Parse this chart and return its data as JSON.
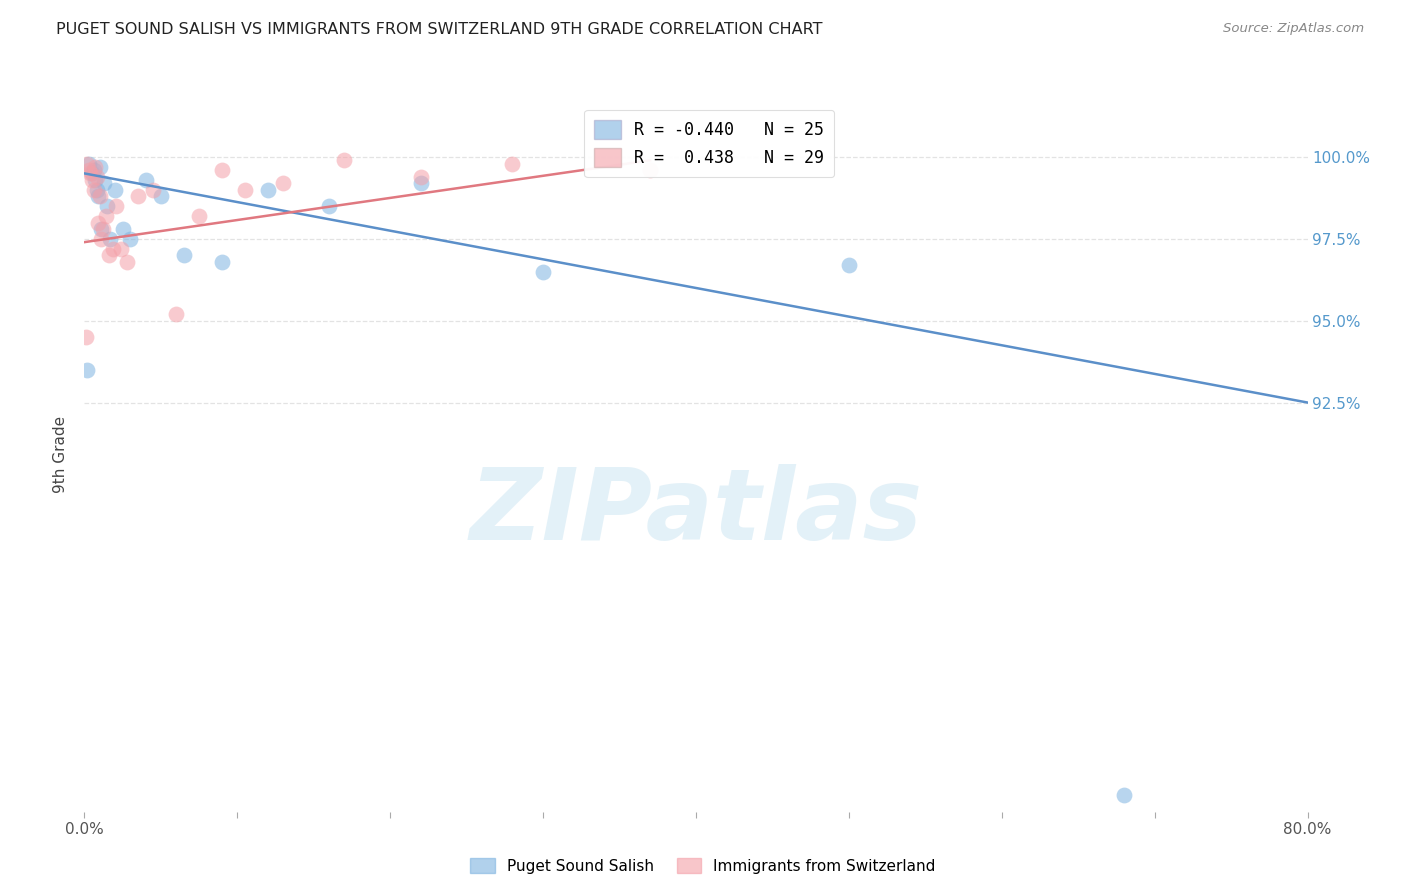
{
  "title": "PUGET SOUND SALISH VS IMMIGRANTS FROM SWITZERLAND 9TH GRADE CORRELATION CHART",
  "source": "Source: ZipAtlas.com",
  "ylabel": "9th Grade",
  "y_ticks": [
    92.5,
    95.0,
    97.5,
    100.0
  ],
  "y_tick_labels": [
    "92.5%",
    "95.0%",
    "97.5%",
    "100.0%"
  ],
  "x_min": 0.0,
  "x_max": 80.0,
  "y_min": 80.0,
  "y_max": 101.8,
  "blue_color": "#7EB3E0",
  "pink_color": "#F4A0A8",
  "blue_line_color": "#5B8FC9",
  "pink_line_color": "#E07880",
  "watermark": "ZIPatlas",
  "legend_blue_R": "-0.440",
  "legend_blue_N": "25",
  "legend_pink_R": " 0.438",
  "legend_pink_N": "29",
  "blue_scatter_x": [
    0.15,
    0.3,
    0.5,
    0.6,
    0.7,
    0.8,
    0.9,
    1.0,
    1.1,
    1.3,
    1.5,
    1.7,
    2.0,
    2.5,
    3.0,
    4.0,
    5.0,
    6.5,
    9.0,
    12.0,
    16.0,
    22.0,
    30.0,
    50.0,
    68.0
  ],
  "blue_scatter_y": [
    93.5,
    99.8,
    99.5,
    99.6,
    99.3,
    99.0,
    98.8,
    99.7,
    97.8,
    99.2,
    98.5,
    97.5,
    99.0,
    97.8,
    97.5,
    99.3,
    98.8,
    97.0,
    96.8,
    99.0,
    98.5,
    99.2,
    96.5,
    96.7,
    80.5
  ],
  "pink_scatter_x": [
    0.1,
    0.2,
    0.3,
    0.4,
    0.5,
    0.6,
    0.7,
    0.8,
    0.9,
    1.0,
    1.1,
    1.2,
    1.4,
    1.6,
    1.9,
    2.1,
    2.4,
    2.8,
    3.5,
    4.5,
    6.0,
    7.5,
    9.0,
    10.5,
    13.0,
    17.0,
    22.0,
    28.0,
    37.0
  ],
  "pink_scatter_y": [
    94.5,
    99.8,
    99.6,
    99.5,
    99.3,
    99.0,
    99.7,
    99.4,
    98.0,
    98.8,
    97.5,
    97.8,
    98.2,
    97.0,
    97.2,
    98.5,
    97.2,
    96.8,
    98.8,
    99.0,
    95.2,
    98.2,
    99.6,
    99.0,
    99.2,
    99.9,
    99.4,
    99.8,
    99.6
  ],
  "blue_trend_x": [
    0.0,
    80.0
  ],
  "blue_trend_y": [
    99.5,
    92.5
  ],
  "pink_trend_x": [
    0.0,
    37.0
  ],
  "pink_trend_y": [
    97.4,
    99.9
  ],
  "grid_color": "#DDDDDD",
  "ax_label_color": "#555555",
  "right_tick_color": "#5599CC"
}
